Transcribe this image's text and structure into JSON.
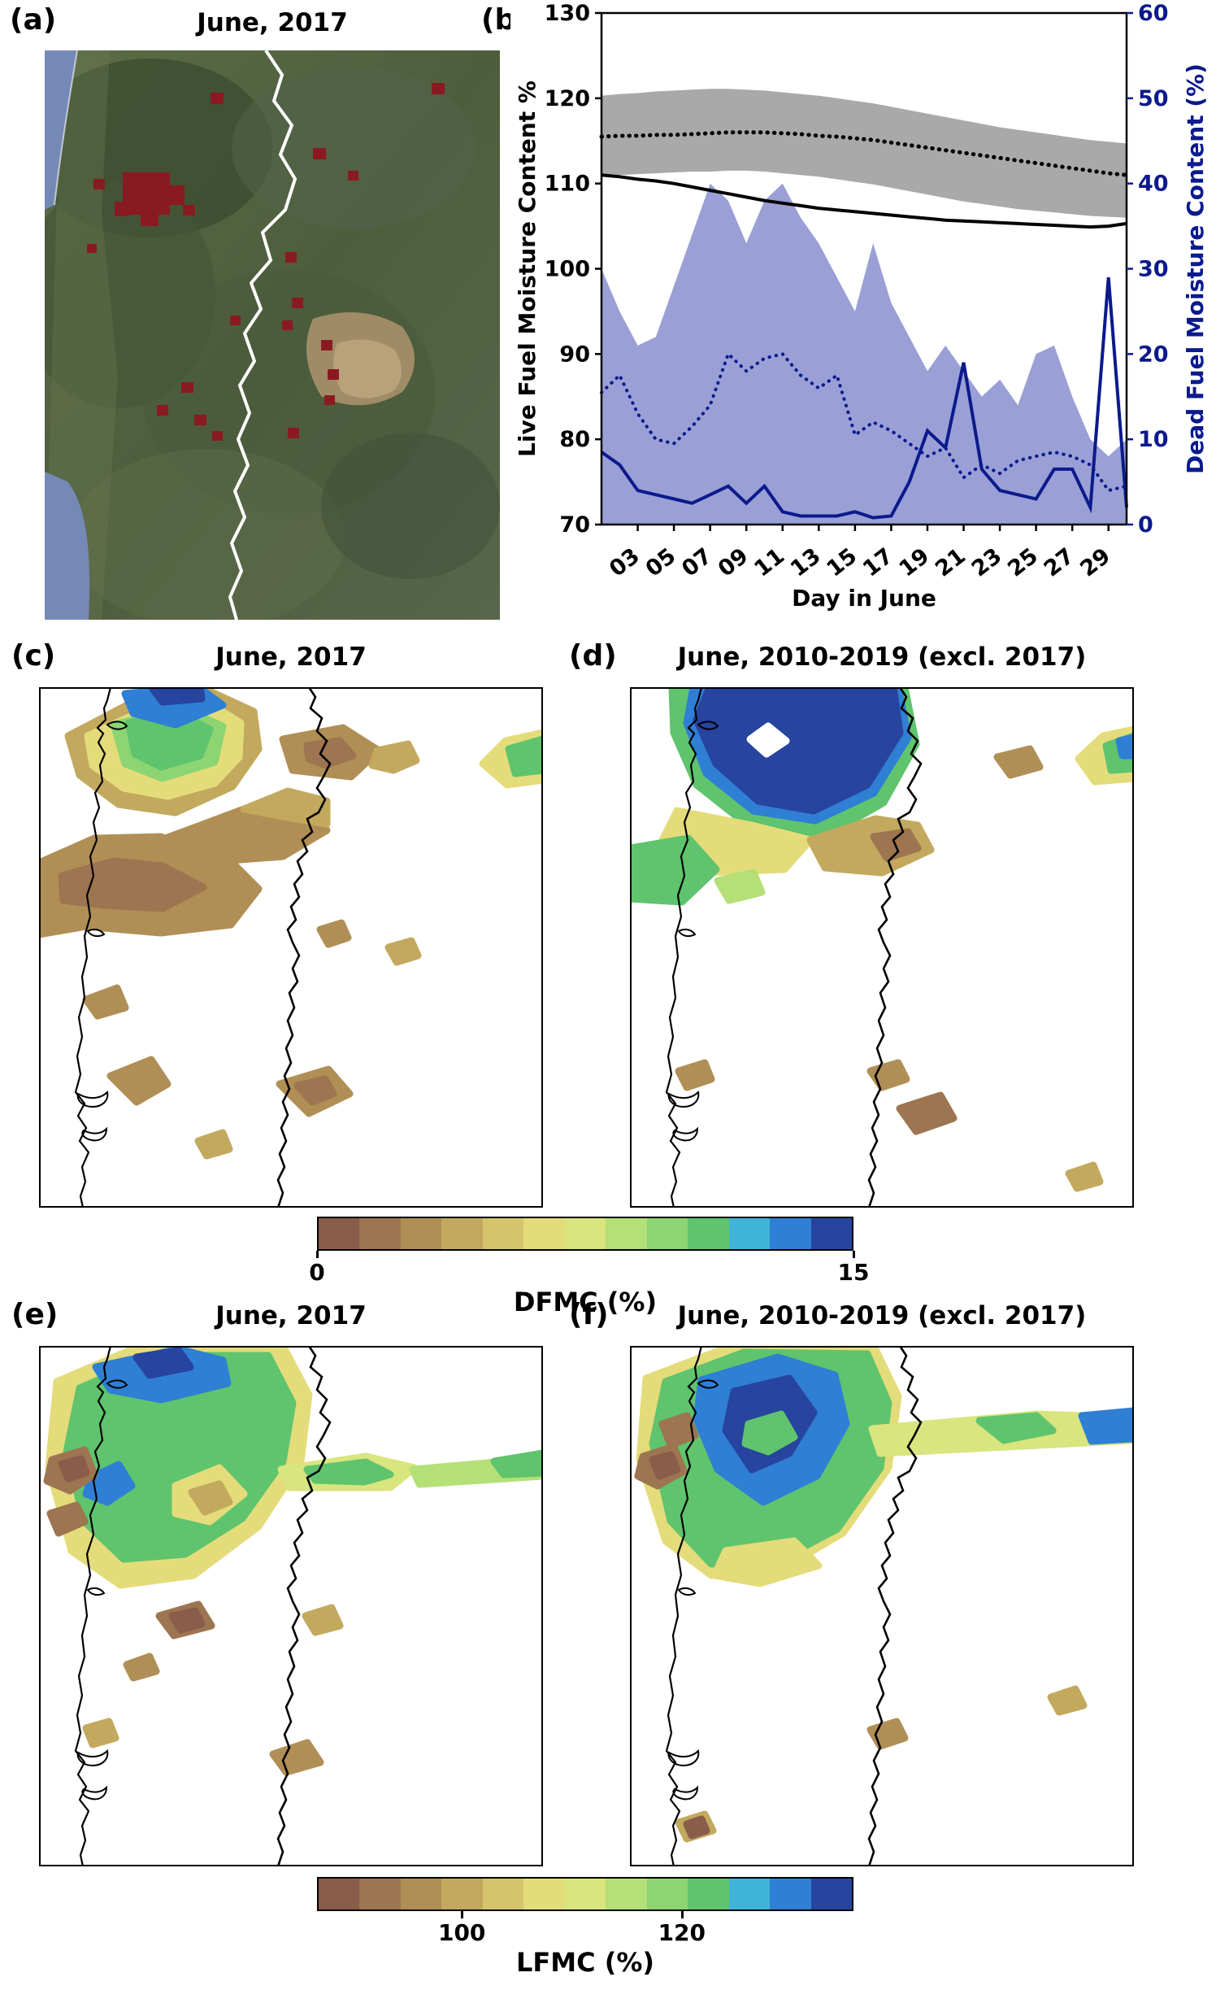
{
  "figure": {
    "panels": {
      "a": {
        "label": "(a)",
        "title": "June, 2017"
      },
      "b": {
        "label": "(b)"
      },
      "c": {
        "label": "(c)",
        "title": "June, 2017"
      },
      "d": {
        "label": "(d)",
        "title": "June, 2010-2019 (excl. 2017)"
      },
      "e": {
        "label": "(e)",
        "title": "June, 2017"
      },
      "f": {
        "label": "(f)",
        "title": "June, 2010-2019 (excl. 2017)"
      }
    },
    "colorbars": {
      "dfmc": {
        "title": "DFMC (%)",
        "ticks": [
          {
            "label": "0",
            "pos": 0
          },
          {
            "label": "15",
            "pos": 1
          }
        ],
        "colors": [
          "#8a5c4a",
          "#9d7550",
          "#b08f56",
          "#c2a95e",
          "#d4c46c",
          "#e4dc7a",
          "#d9e57e",
          "#b4e077",
          "#8cd572",
          "#5fc46d",
          "#3fb4d8",
          "#2f7fd4",
          "#27449e"
        ]
      },
      "lfmc": {
        "title": "LFMC (%)",
        "ticks": [
          {
            "label": "100",
            "pos": 0.27
          },
          {
            "label": "120",
            "pos": 0.68
          }
        ],
        "colors": [
          "#8a5c4a",
          "#9d7550",
          "#b08f56",
          "#c2a95e",
          "#d4c46c",
          "#e4dc7a",
          "#d9e57e",
          "#b4e077",
          "#8cd572",
          "#5fc46d",
          "#3fb4d8",
          "#2f7fd4",
          "#27449e"
        ]
      }
    },
    "map_annotations": {
      "fire_pixel_color": "#8a1a22",
      "border_line_color": "#ffffff"
    }
  },
  "chart_data": {
    "type": "line",
    "title": "",
    "xlabel": "Day in June",
    "ylabel_left": "Live Fuel Moisture Content %",
    "ylabel_right": "Dead Fuel Moisture Content (%)",
    "ylim_left": [
      70,
      130
    ],
    "ylim_right": [
      0,
      60
    ],
    "grid": false,
    "legend": "none",
    "colors": {
      "left_axis": "#000000",
      "right_axis": "#0b1a8c"
    },
    "x": [
      1,
      2,
      3,
      4,
      5,
      6,
      7,
      8,
      9,
      10,
      11,
      12,
      13,
      14,
      15,
      16,
      17,
      18,
      19,
      20,
      21,
      22,
      23,
      24,
      25,
      26,
      27,
      28,
      29,
      30
    ],
    "x_ticks": [
      "03",
      "05",
      "07",
      "09",
      "11",
      "13",
      "15",
      "17",
      "19",
      "21",
      "23",
      "25",
      "27",
      "29"
    ],
    "y_ticks_left": [
      "70",
      "80",
      "90",
      "100",
      "110",
      "120",
      "130"
    ],
    "y_ticks_right": [
      "0",
      "10",
      "20",
      "30",
      "40",
      "50",
      "60"
    ],
    "bands": [
      {
        "name": "lfmc-climatology-range",
        "axis": "left",
        "color": "#a9a9a9",
        "opacity": 1,
        "upper": [
          120.3,
          120.5,
          120.6,
          120.8,
          120.9,
          121.0,
          121.1,
          121.1,
          121.0,
          120.9,
          120.7,
          120.5,
          120.3,
          120.0,
          119.7,
          119.4,
          119.0,
          118.6,
          118.2,
          117.8,
          117.4,
          117.0,
          116.6,
          116.3,
          116.0,
          115.7,
          115.4,
          115.1,
          114.9,
          114.7
        ],
        "lower": [
          110.9,
          111.0,
          111.1,
          111.2,
          111.3,
          111.4,
          111.4,
          111.5,
          111.5,
          111.4,
          111.2,
          111.0,
          110.8,
          110.5,
          110.2,
          109.9,
          109.5,
          109.1,
          108.7,
          108.3,
          107.9,
          107.6,
          107.3,
          107.0,
          106.8,
          106.6,
          106.4,
          106.2,
          106.1,
          106.0
        ]
      },
      {
        "name": "dfmc-climatology-range",
        "axis": "right",
        "color": "#8f96d2",
        "opacity": 0.9,
        "upper": [
          30,
          25,
          21,
          22,
          28,
          34,
          40,
          38,
          33,
          38,
          40,
          36,
          33,
          29,
          25,
          33,
          26,
          22,
          18,
          21,
          18,
          15,
          17,
          14,
          20,
          21,
          15,
          10,
          8,
          10
        ],
        "lower": [
          0,
          0,
          0,
          0,
          0,
          0,
          0,
          0,
          0,
          0,
          0,
          0,
          0,
          0,
          0,
          0,
          0,
          0,
          0,
          0,
          0,
          0,
          0,
          0,
          0,
          0,
          0,
          0,
          0,
          0
        ]
      }
    ],
    "lines": [
      {
        "name": "lfmc-climatology-mean",
        "axis": "left",
        "color": "#000000",
        "dash": "dotted",
        "width": 5,
        "values": [
          115.5,
          115.6,
          115.6,
          115.7,
          115.7,
          115.8,
          115.9,
          116.0,
          116.0,
          116.0,
          115.9,
          115.8,
          115.6,
          115.5,
          115.3,
          115.1,
          114.8,
          114.5,
          114.2,
          113.9,
          113.6,
          113.3,
          113.0,
          112.7,
          112.4,
          112.1,
          111.8,
          111.5,
          111.2,
          111.0
        ]
      },
      {
        "name": "lfmc-2017",
        "axis": "left",
        "color": "#000000",
        "dash": "solid",
        "width": 4,
        "values": [
          111.0,
          110.8,
          110.5,
          110.3,
          110.0,
          109.6,
          109.2,
          108.8,
          108.4,
          108.0,
          107.7,
          107.4,
          107.1,
          106.9,
          106.7,
          106.5,
          106.3,
          106.1,
          105.9,
          105.7,
          105.6,
          105.5,
          105.4,
          105.3,
          105.2,
          105.1,
          105.0,
          104.9,
          105.0,
          105.3
        ]
      },
      {
        "name": "dfmc-climatology-mean",
        "axis": "right",
        "color": "#0b1a8c",
        "dash": "dotted",
        "width": 4,
        "values": [
          15.5,
          17.5,
          13.0,
          10.0,
          9.5,
          11.5,
          14.0,
          20.0,
          18.0,
          19.5,
          20.0,
          17.5,
          16.0,
          17.5,
          10.5,
          12.0,
          11.0,
          9.5,
          8.0,
          9.0,
          5.5,
          7.0,
          6.0,
          7.5,
          8.0,
          8.5,
          8.0,
          7.0,
          4.0,
          4.5
        ]
      },
      {
        "name": "dfmc-2017",
        "axis": "right",
        "color": "#0b1a8c",
        "dash": "solid",
        "width": 4,
        "values": [
          8.5,
          7.0,
          4.0,
          3.5,
          3.0,
          2.5,
          3.5,
          4.5,
          2.5,
          4.5,
          1.5,
          1.0,
          1.0,
          1.0,
          1.5,
          0.8,
          1.0,
          5.0,
          11.0,
          9.0,
          19.0,
          6.5,
          4.0,
          3.5,
          3.0,
          6.5,
          6.5,
          2.0,
          29.0,
          2.0
        ]
      }
    ]
  }
}
